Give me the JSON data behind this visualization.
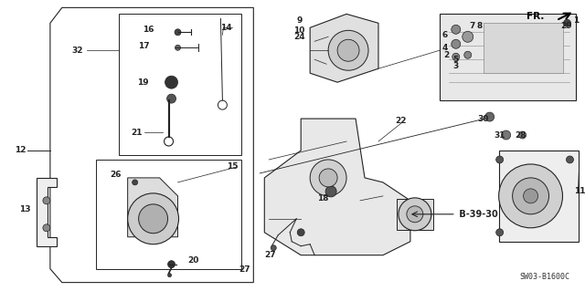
{
  "bg_color": "#ffffff",
  "diagram_code": "SW03-B1600C",
  "line_color": "#222222",
  "label_fontsize": 6.5,
  "fr_arrow_color": "#000000"
}
